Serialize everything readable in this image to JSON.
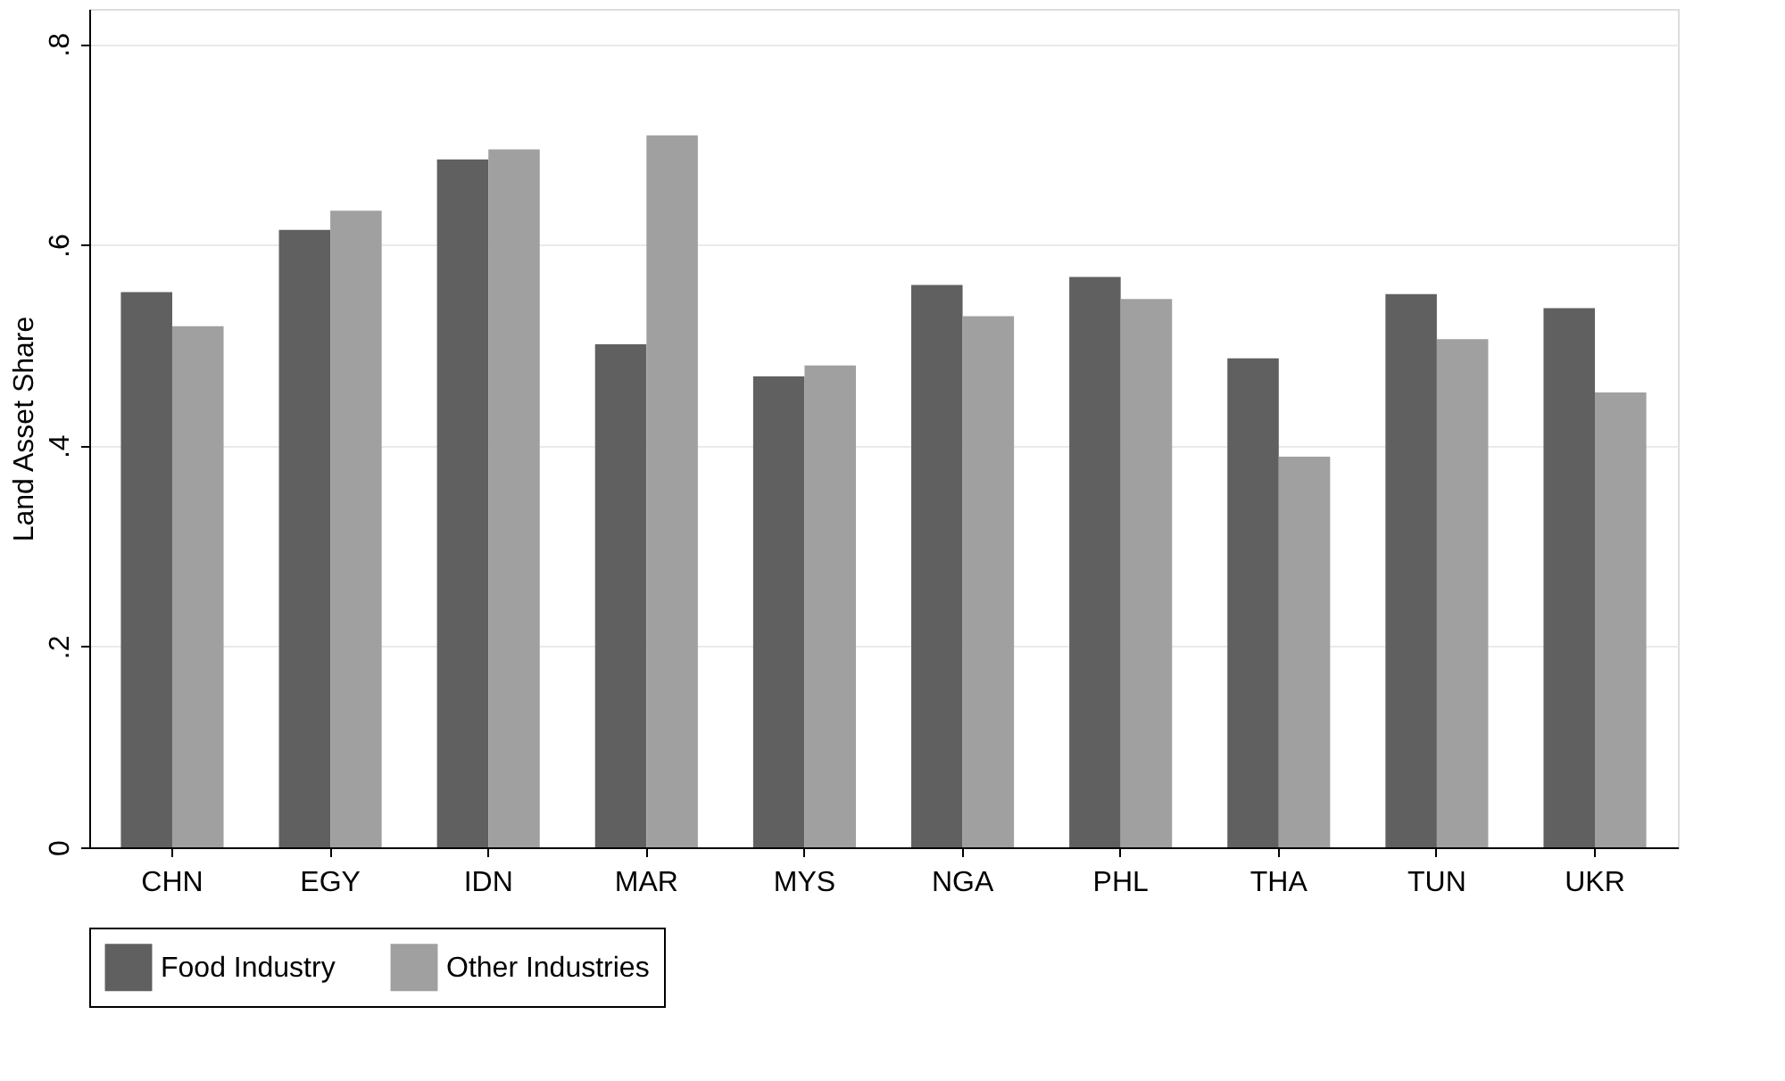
{
  "chart_data": {
    "type": "bar",
    "ylabel": "Land Asset Share",
    "categories": [
      "CHN",
      "EGY",
      "IDN",
      "MAR",
      "MYS",
      "NGA",
      "PHL",
      "THA",
      "TUN",
      "UKR"
    ],
    "series": [
      {
        "name": "Food Industry",
        "color": "#606060",
        "values": [
          0.553,
          0.615,
          0.685,
          0.501,
          0.469,
          0.56,
          0.568,
          0.487,
          0.551,
          0.537
        ]
      },
      {
        "name": "Other Industries",
        "color": "#a0a0a0",
        "values": [
          0.519,
          0.634,
          0.695,
          0.709,
          0.48,
          0.529,
          0.546,
          0.389,
          0.506,
          0.453
        ]
      }
    ],
    "ylim": [
      0,
      0.835
    ],
    "yticks": [
      0,
      {
        "value": 0.2,
        "label": ".2"
      },
      {
        "value": 0.4,
        "label": ".4"
      },
      {
        "value": 0.6,
        "label": ".6"
      },
      {
        "value": 0.8,
        "label": ".8"
      }
    ],
    "grid": "y",
    "legend": "bottom"
  }
}
